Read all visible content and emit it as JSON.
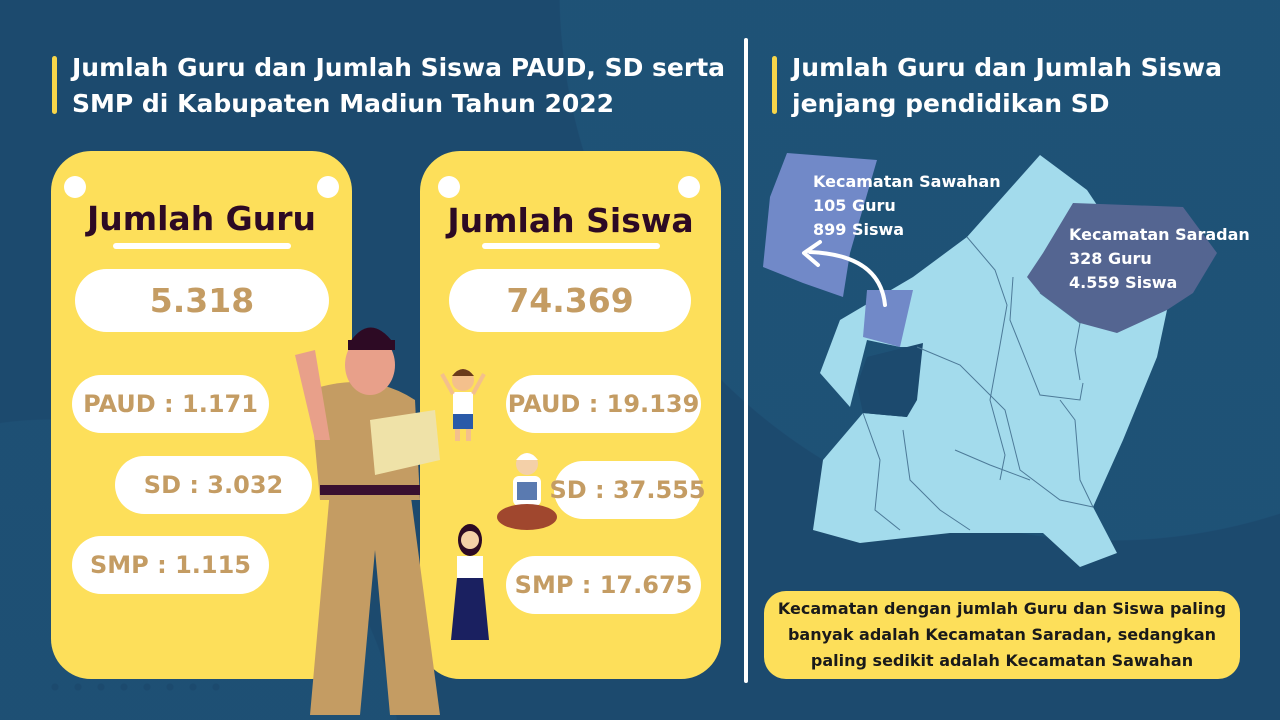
{
  "left_panel": {
    "title": "Jumlah Guru dan Jumlah Siswa PAUD, SD serta SMP di Kabupaten Madiun Tahun 2022",
    "guru_card": {
      "title": "Jumlah Guru",
      "total": "5.318",
      "items": [
        {
          "label": "PAUD : 1.171"
        },
        {
          "label": "SD : 3.032"
        },
        {
          "label": "SMP : 1.115"
        }
      ]
    },
    "siswa_card": {
      "title": "Jumlah Siswa",
      "total": "74.369",
      "items": [
        {
          "label": "PAUD : 19.139"
        },
        {
          "label": "SD : 37.555"
        },
        {
          "label": "SMP : 17.675"
        }
      ]
    }
  },
  "right_panel": {
    "title": "Jumlah Guru dan Jumlah Siswa jenjang pendidikan SD",
    "sawahan": {
      "name": "Kecamatan Sawahan",
      "guru": "105 Guru",
      "siswa": "899 Siswa"
    },
    "saradan": {
      "name": "Kecamatan Saradan",
      "guru": "328 Guru",
      "siswa": "4.559 Siswa"
    },
    "note": "Kecamatan dengan jumlah Guru dan Siswa paling banyak adalah Kecamatan Saradan, sedangkan paling sedikit adalah Kecamatan Sawahan"
  },
  "colors": {
    "background": "#1c4a6e",
    "card": "#fddf5a",
    "number_text": "#c49c63",
    "map_base": "#a3dbec",
    "sawahan": "#7189c8",
    "saradan": "#546591"
  }
}
